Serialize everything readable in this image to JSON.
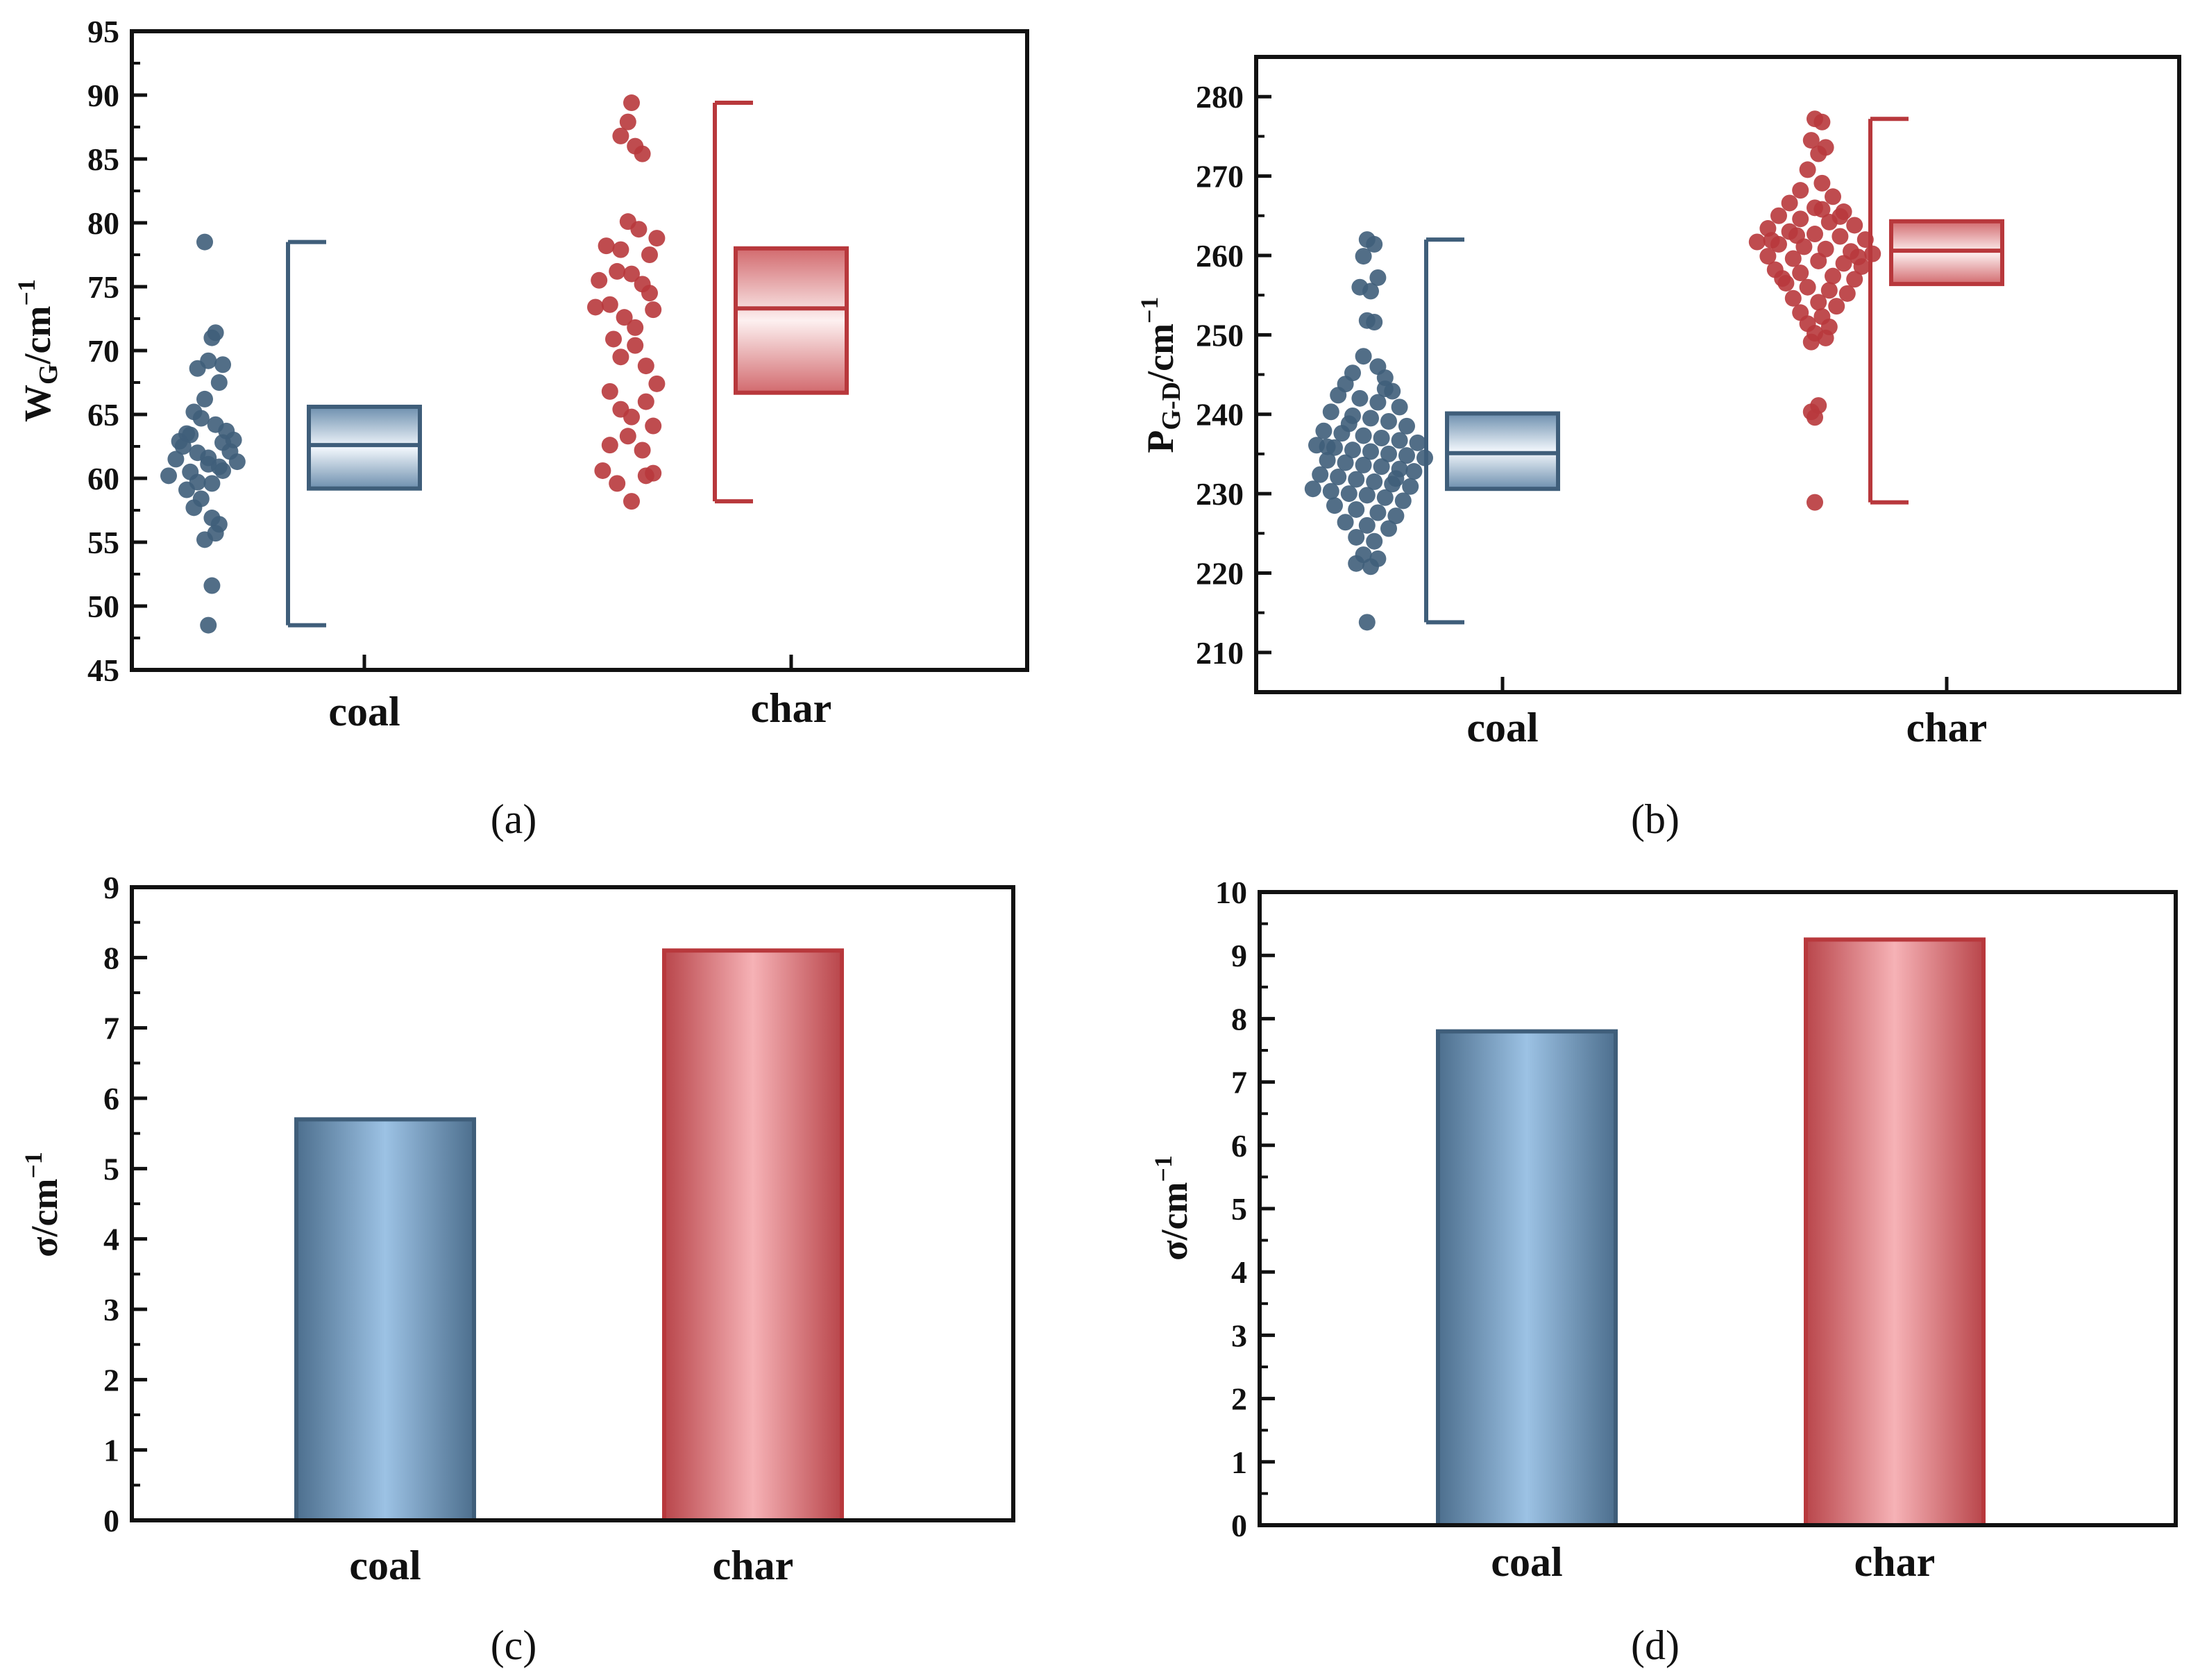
{
  "figure": {
    "panels": [
      {
        "id": "a",
        "label": "(a)"
      },
      {
        "id": "b",
        "label": "(b)"
      },
      {
        "id": "c",
        "label": "(c)"
      },
      {
        "id": "d",
        "label": "(d)"
      }
    ]
  },
  "colors": {
    "coal": "#3f5e7a",
    "coal_light": "#a8c8e6",
    "char": "#b8383c",
    "char_light": "#f4b4b8",
    "axis": "#111111"
  },
  "chart_data": [
    {
      "id": "a",
      "type": "scatter",
      "label": "(a)",
      "ylabel_main": "W",
      "ylabel_sub": "G",
      "ylabel_rest": "/cm",
      "ylabel_sup": "−1",
      "ylim": [
        45,
        95
      ],
      "yticks": [
        45,
        50,
        55,
        60,
        65,
        70,
        75,
        80,
        85,
        90,
        95
      ],
      "categories": [
        "coal",
        "char"
      ],
      "series": [
        {
          "name": "coal",
          "box": {
            "min": 48.5,
            "q1": 59.2,
            "median": 62.6,
            "q3": 65.6,
            "max": 78.5
          },
          "points": [
            {
              "dx": -0.1,
              "y": 60.2
            },
            {
              "dx": -0.07,
              "y": 62.9
            },
            {
              "dx": -0.05,
              "y": 63.5
            },
            {
              "dx": -0.08,
              "y": 61.5
            },
            {
              "dx": -0.02,
              "y": 62.0
            },
            {
              "dx": 0.01,
              "y": 61.6
            },
            {
              "dx": 0.04,
              "y": 60.9
            },
            {
              "dx": 0.07,
              "y": 62.1
            },
            {
              "dx": 0.09,
              "y": 61.3
            },
            {
              "dx": -0.04,
              "y": 63.4
            },
            {
              "dx": -0.01,
              "y": 64.7
            },
            {
              "dx": 0.03,
              "y": 64.2
            },
            {
              "dx": 0.06,
              "y": 63.7
            },
            {
              "dx": -0.03,
              "y": 65.2
            },
            {
              "dx": 0.0,
              "y": 66.2
            },
            {
              "dx": 0.04,
              "y": 67.5
            },
            {
              "dx": -0.02,
              "y": 68.6
            },
            {
              "dx": 0.01,
              "y": 69.2
            },
            {
              "dx": 0.05,
              "y": 68.9
            },
            {
              "dx": 0.02,
              "y": 71.0
            },
            {
              "dx": 0.03,
              "y": 71.4
            },
            {
              "dx": 0.0,
              "y": 78.5
            },
            {
              "dx": -0.05,
              "y": 59.1
            },
            {
              "dx": -0.01,
              "y": 58.4
            },
            {
              "dx": 0.02,
              "y": 59.6
            },
            {
              "dx": 0.05,
              "y": 60.6
            },
            {
              "dx": -0.03,
              "y": 57.7
            },
            {
              "dx": 0.02,
              "y": 56.9
            },
            {
              "dx": 0.04,
              "y": 56.4
            },
            {
              "dx": 0.03,
              "y": 55.7
            },
            {
              "dx": 0.0,
              "y": 55.2
            },
            {
              "dx": 0.02,
              "y": 51.6
            },
            {
              "dx": 0.01,
              "y": 48.5
            },
            {
              "dx": -0.06,
              "y": 62.5
            },
            {
              "dx": 0.08,
              "y": 63.0
            },
            {
              "dx": -0.04,
              "y": 60.5
            },
            {
              "dx": 0.01,
              "y": 61.1
            },
            {
              "dx": -0.02,
              "y": 59.7
            },
            {
              "dx": 0.05,
              "y": 62.8
            }
          ]
        },
        {
          "name": "char",
          "box": {
            "min": 58.2,
            "q1": 66.7,
            "median": 73.3,
            "q3": 78.0,
            "max": 89.4
          },
          "points": [
            {
              "dx": 0.0,
              "y": 89.4
            },
            {
              "dx": -0.01,
              "y": 87.9
            },
            {
              "dx": -0.03,
              "y": 86.8
            },
            {
              "dx": 0.01,
              "y": 86.0
            },
            {
              "dx": 0.03,
              "y": 85.4
            },
            {
              "dx": -0.01,
              "y": 80.1
            },
            {
              "dx": 0.02,
              "y": 79.5
            },
            {
              "dx": 0.07,
              "y": 78.8
            },
            {
              "dx": -0.07,
              "y": 78.2
            },
            {
              "dx": -0.03,
              "y": 77.9
            },
            {
              "dx": 0.05,
              "y": 77.5
            },
            {
              "dx": -0.09,
              "y": 75.5
            },
            {
              "dx": -0.04,
              "y": 76.2
            },
            {
              "dx": 0.0,
              "y": 76.0
            },
            {
              "dx": 0.03,
              "y": 75.2
            },
            {
              "dx": 0.05,
              "y": 74.5
            },
            {
              "dx": -0.06,
              "y": 73.6
            },
            {
              "dx": -0.1,
              "y": 73.4
            },
            {
              "dx": 0.06,
              "y": 73.2
            },
            {
              "dx": -0.02,
              "y": 72.6
            },
            {
              "dx": 0.01,
              "y": 71.8
            },
            {
              "dx": -0.05,
              "y": 70.9
            },
            {
              "dx": 0.01,
              "y": 70.4
            },
            {
              "dx": -0.03,
              "y": 69.5
            },
            {
              "dx": 0.04,
              "y": 68.8
            },
            {
              "dx": 0.07,
              "y": 67.4
            },
            {
              "dx": -0.06,
              "y": 66.8
            },
            {
              "dx": 0.04,
              "y": 66.0
            },
            {
              "dx": -0.03,
              "y": 65.4
            },
            {
              "dx": 0.0,
              "y": 64.8
            },
            {
              "dx": 0.06,
              "y": 64.1
            },
            {
              "dx": -0.01,
              "y": 63.3
            },
            {
              "dx": -0.06,
              "y": 62.6
            },
            {
              "dx": 0.03,
              "y": 62.2
            },
            {
              "dx": -0.08,
              "y": 60.6
            },
            {
              "dx": -0.04,
              "y": 59.6
            },
            {
              "dx": 0.04,
              "y": 60.2
            },
            {
              "dx": 0.06,
              "y": 60.4
            },
            {
              "dx": 0.0,
              "y": 58.2
            }
          ]
        }
      ]
    },
    {
      "id": "b",
      "type": "scatter",
      "label": "(b)",
      "ylabel_main": "P",
      "ylabel_sub": "G-D",
      "ylabel_rest": "/cm",
      "ylabel_sup": "−1",
      "ylim": [
        205,
        285
      ],
      "yticks": [
        210,
        220,
        230,
        240,
        250,
        260,
        270,
        280
      ],
      "categories": [
        "coal",
        "char"
      ],
      "series": [
        {
          "name": "coal",
          "box": {
            "min": 213.8,
            "q1": 230.6,
            "median": 235.1,
            "q3": 240.1,
            "max": 262.0
          },
          "points": [
            {
              "dx": -0.01,
              "y": 262.0
            },
            {
              "dx": 0.01,
              "y": 261.4
            },
            {
              "dx": -0.02,
              "y": 259.9
            },
            {
              "dx": 0.02,
              "y": 257.2
            },
            {
              "dx": -0.03,
              "y": 256.0
            },
            {
              "dx": 0.0,
              "y": 255.5
            },
            {
              "dx": -0.01,
              "y": 251.8
            },
            {
              "dx": 0.01,
              "y": 251.6
            },
            {
              "dx": -0.02,
              "y": 247.3
            },
            {
              "dx": 0.02,
              "y": 246.0
            },
            {
              "dx": -0.05,
              "y": 245.2
            },
            {
              "dx": 0.04,
              "y": 244.6
            },
            {
              "dx": -0.07,
              "y": 243.8
            },
            {
              "dx": 0.06,
              "y": 242.9
            },
            {
              "dx": -0.09,
              "y": 242.4
            },
            {
              "dx": -0.03,
              "y": 242.0
            },
            {
              "dx": 0.02,
              "y": 241.5
            },
            {
              "dx": 0.08,
              "y": 240.9
            },
            {
              "dx": -0.11,
              "y": 240.3
            },
            {
              "dx": -0.05,
              "y": 239.8
            },
            {
              "dx": 0.0,
              "y": 239.5
            },
            {
              "dx": 0.05,
              "y": 239.1
            },
            {
              "dx": 0.1,
              "y": 238.5
            },
            {
              "dx": -0.13,
              "y": 237.9
            },
            {
              "dx": -0.08,
              "y": 237.6
            },
            {
              "dx": -0.02,
              "y": 237.3
            },
            {
              "dx": 0.03,
              "y": 237.0
            },
            {
              "dx": 0.08,
              "y": 236.7
            },
            {
              "dx": 0.13,
              "y": 236.4
            },
            {
              "dx": -0.15,
              "y": 236.1
            },
            {
              "dx": -0.1,
              "y": 235.8
            },
            {
              "dx": -0.05,
              "y": 235.5
            },
            {
              "dx": 0.0,
              "y": 235.3
            },
            {
              "dx": 0.05,
              "y": 235.0
            },
            {
              "dx": 0.1,
              "y": 234.8
            },
            {
              "dx": 0.15,
              "y": 234.5
            },
            {
              "dx": -0.12,
              "y": 234.2
            },
            {
              "dx": -0.07,
              "y": 233.9
            },
            {
              "dx": -0.02,
              "y": 233.6
            },
            {
              "dx": 0.03,
              "y": 233.4
            },
            {
              "dx": 0.08,
              "y": 233.1
            },
            {
              "dx": 0.12,
              "y": 232.8
            },
            {
              "dx": -0.14,
              "y": 232.4
            },
            {
              "dx": -0.09,
              "y": 232.1
            },
            {
              "dx": -0.04,
              "y": 231.8
            },
            {
              "dx": 0.01,
              "y": 231.5
            },
            {
              "dx": 0.06,
              "y": 231.2
            },
            {
              "dx": 0.11,
              "y": 230.9
            },
            {
              "dx": -0.16,
              "y": 230.6
            },
            {
              "dx": -0.11,
              "y": 230.3
            },
            {
              "dx": -0.06,
              "y": 230.0
            },
            {
              "dx": -0.01,
              "y": 229.8
            },
            {
              "dx": 0.04,
              "y": 229.5
            },
            {
              "dx": 0.09,
              "y": 229.1
            },
            {
              "dx": -0.1,
              "y": 228.5
            },
            {
              "dx": -0.04,
              "y": 228.0
            },
            {
              "dx": 0.02,
              "y": 227.6
            },
            {
              "dx": 0.07,
              "y": 227.2
            },
            {
              "dx": -0.07,
              "y": 226.4
            },
            {
              "dx": -0.01,
              "y": 226.0
            },
            {
              "dx": 0.05,
              "y": 225.6
            },
            {
              "dx": -0.04,
              "y": 224.5
            },
            {
              "dx": 0.01,
              "y": 224.0
            },
            {
              "dx": -0.02,
              "y": 222.3
            },
            {
              "dx": 0.02,
              "y": 221.8
            },
            {
              "dx": -0.04,
              "y": 221.2
            },
            {
              "dx": 0.0,
              "y": 220.8
            },
            {
              "dx": -0.01,
              "y": 213.8
            },
            {
              "dx": 0.04,
              "y": 243.2
            },
            {
              "dx": -0.06,
              "y": 238.8
            },
            {
              "dx": 0.07,
              "y": 231.9
            },
            {
              "dx": -0.12,
              "y": 235.9
            }
          ]
        },
        {
          "name": "char",
          "box": {
            "min": 228.9,
            "q1": 256.4,
            "median": 260.6,
            "q3": 264.3,
            "max": 277.2
          },
          "points": [
            {
              "dx": 0.0,
              "y": 277.2
            },
            {
              "dx": 0.02,
              "y": 276.8
            },
            {
              "dx": -0.01,
              "y": 274.5
            },
            {
              "dx": 0.03,
              "y": 273.6
            },
            {
              "dx": 0.01,
              "y": 272.8
            },
            {
              "dx": -0.02,
              "y": 270.8
            },
            {
              "dx": 0.02,
              "y": 269.1
            },
            {
              "dx": -0.04,
              "y": 268.2
            },
            {
              "dx": 0.05,
              "y": 267.4
            },
            {
              "dx": -0.07,
              "y": 266.6
            },
            {
              "dx": 0.0,
              "y": 266.0
            },
            {
              "dx": 0.08,
              "y": 265.5
            },
            {
              "dx": -0.1,
              "y": 265.0
            },
            {
              "dx": -0.04,
              "y": 264.6
            },
            {
              "dx": 0.04,
              "y": 264.2
            },
            {
              "dx": 0.11,
              "y": 263.8
            },
            {
              "dx": -0.13,
              "y": 263.4
            },
            {
              "dx": -0.07,
              "y": 263.0
            },
            {
              "dx": 0.0,
              "y": 262.7
            },
            {
              "dx": 0.07,
              "y": 262.4
            },
            {
              "dx": 0.14,
              "y": 262.0
            },
            {
              "dx": -0.16,
              "y": 261.7
            },
            {
              "dx": -0.1,
              "y": 261.4
            },
            {
              "dx": -0.03,
              "y": 261.1
            },
            {
              "dx": 0.03,
              "y": 260.8
            },
            {
              "dx": 0.1,
              "y": 260.5
            },
            {
              "dx": 0.16,
              "y": 260.2
            },
            {
              "dx": -0.13,
              "y": 259.9
            },
            {
              "dx": -0.06,
              "y": 259.6
            },
            {
              "dx": 0.01,
              "y": 259.3
            },
            {
              "dx": 0.08,
              "y": 259.0
            },
            {
              "dx": 0.13,
              "y": 258.6
            },
            {
              "dx": -0.11,
              "y": 258.2
            },
            {
              "dx": -0.04,
              "y": 257.8
            },
            {
              "dx": 0.05,
              "y": 257.4
            },
            {
              "dx": 0.11,
              "y": 257.0
            },
            {
              "dx": -0.08,
              "y": 256.5
            },
            {
              "dx": -0.02,
              "y": 256.0
            },
            {
              "dx": 0.04,
              "y": 255.6
            },
            {
              "dx": 0.09,
              "y": 255.2
            },
            {
              "dx": -0.06,
              "y": 254.6
            },
            {
              "dx": 0.01,
              "y": 254.1
            },
            {
              "dx": 0.06,
              "y": 253.6
            },
            {
              "dx": -0.04,
              "y": 252.8
            },
            {
              "dx": 0.02,
              "y": 252.3
            },
            {
              "dx": -0.02,
              "y": 251.4
            },
            {
              "dx": 0.04,
              "y": 251.0
            },
            {
              "dx": 0.0,
              "y": 250.2
            },
            {
              "dx": 0.03,
              "y": 249.6
            },
            {
              "dx": -0.01,
              "y": 249.1
            },
            {
              "dx": 0.01,
              "y": 241.1
            },
            {
              "dx": -0.01,
              "y": 240.3
            },
            {
              "dx": 0.0,
              "y": 239.6
            },
            {
              "dx": 0.0,
              "y": 228.9
            },
            {
              "dx": -0.12,
              "y": 261.9
            },
            {
              "dx": 0.12,
              "y": 259.8
            },
            {
              "dx": -0.09,
              "y": 257.1
            },
            {
              "dx": 0.07,
              "y": 264.9
            },
            {
              "dx": -0.05,
              "y": 262.5
            },
            {
              "dx": 0.02,
              "y": 265.8
            }
          ]
        }
      ]
    },
    {
      "id": "c",
      "type": "bar",
      "label": "(c)",
      "ylabel": "σ/cm",
      "ylabel_sup": "−1",
      "ylim": [
        0,
        9
      ],
      "yticks": [
        0,
        1,
        2,
        3,
        4,
        5,
        6,
        7,
        8,
        9
      ],
      "categories": [
        "coal",
        "char"
      ],
      "values": [
        5.7,
        8.1
      ]
    },
    {
      "id": "d",
      "type": "bar",
      "label": "(d)",
      "ylabel": "σ/cm",
      "ylabel_sup": "−1",
      "ylim": [
        0,
        10
      ],
      "yticks": [
        0,
        1,
        2,
        3,
        4,
        5,
        6,
        7,
        8,
        9,
        10
      ],
      "categories": [
        "coal",
        "char"
      ],
      "values": [
        7.8,
        9.25
      ]
    }
  ]
}
